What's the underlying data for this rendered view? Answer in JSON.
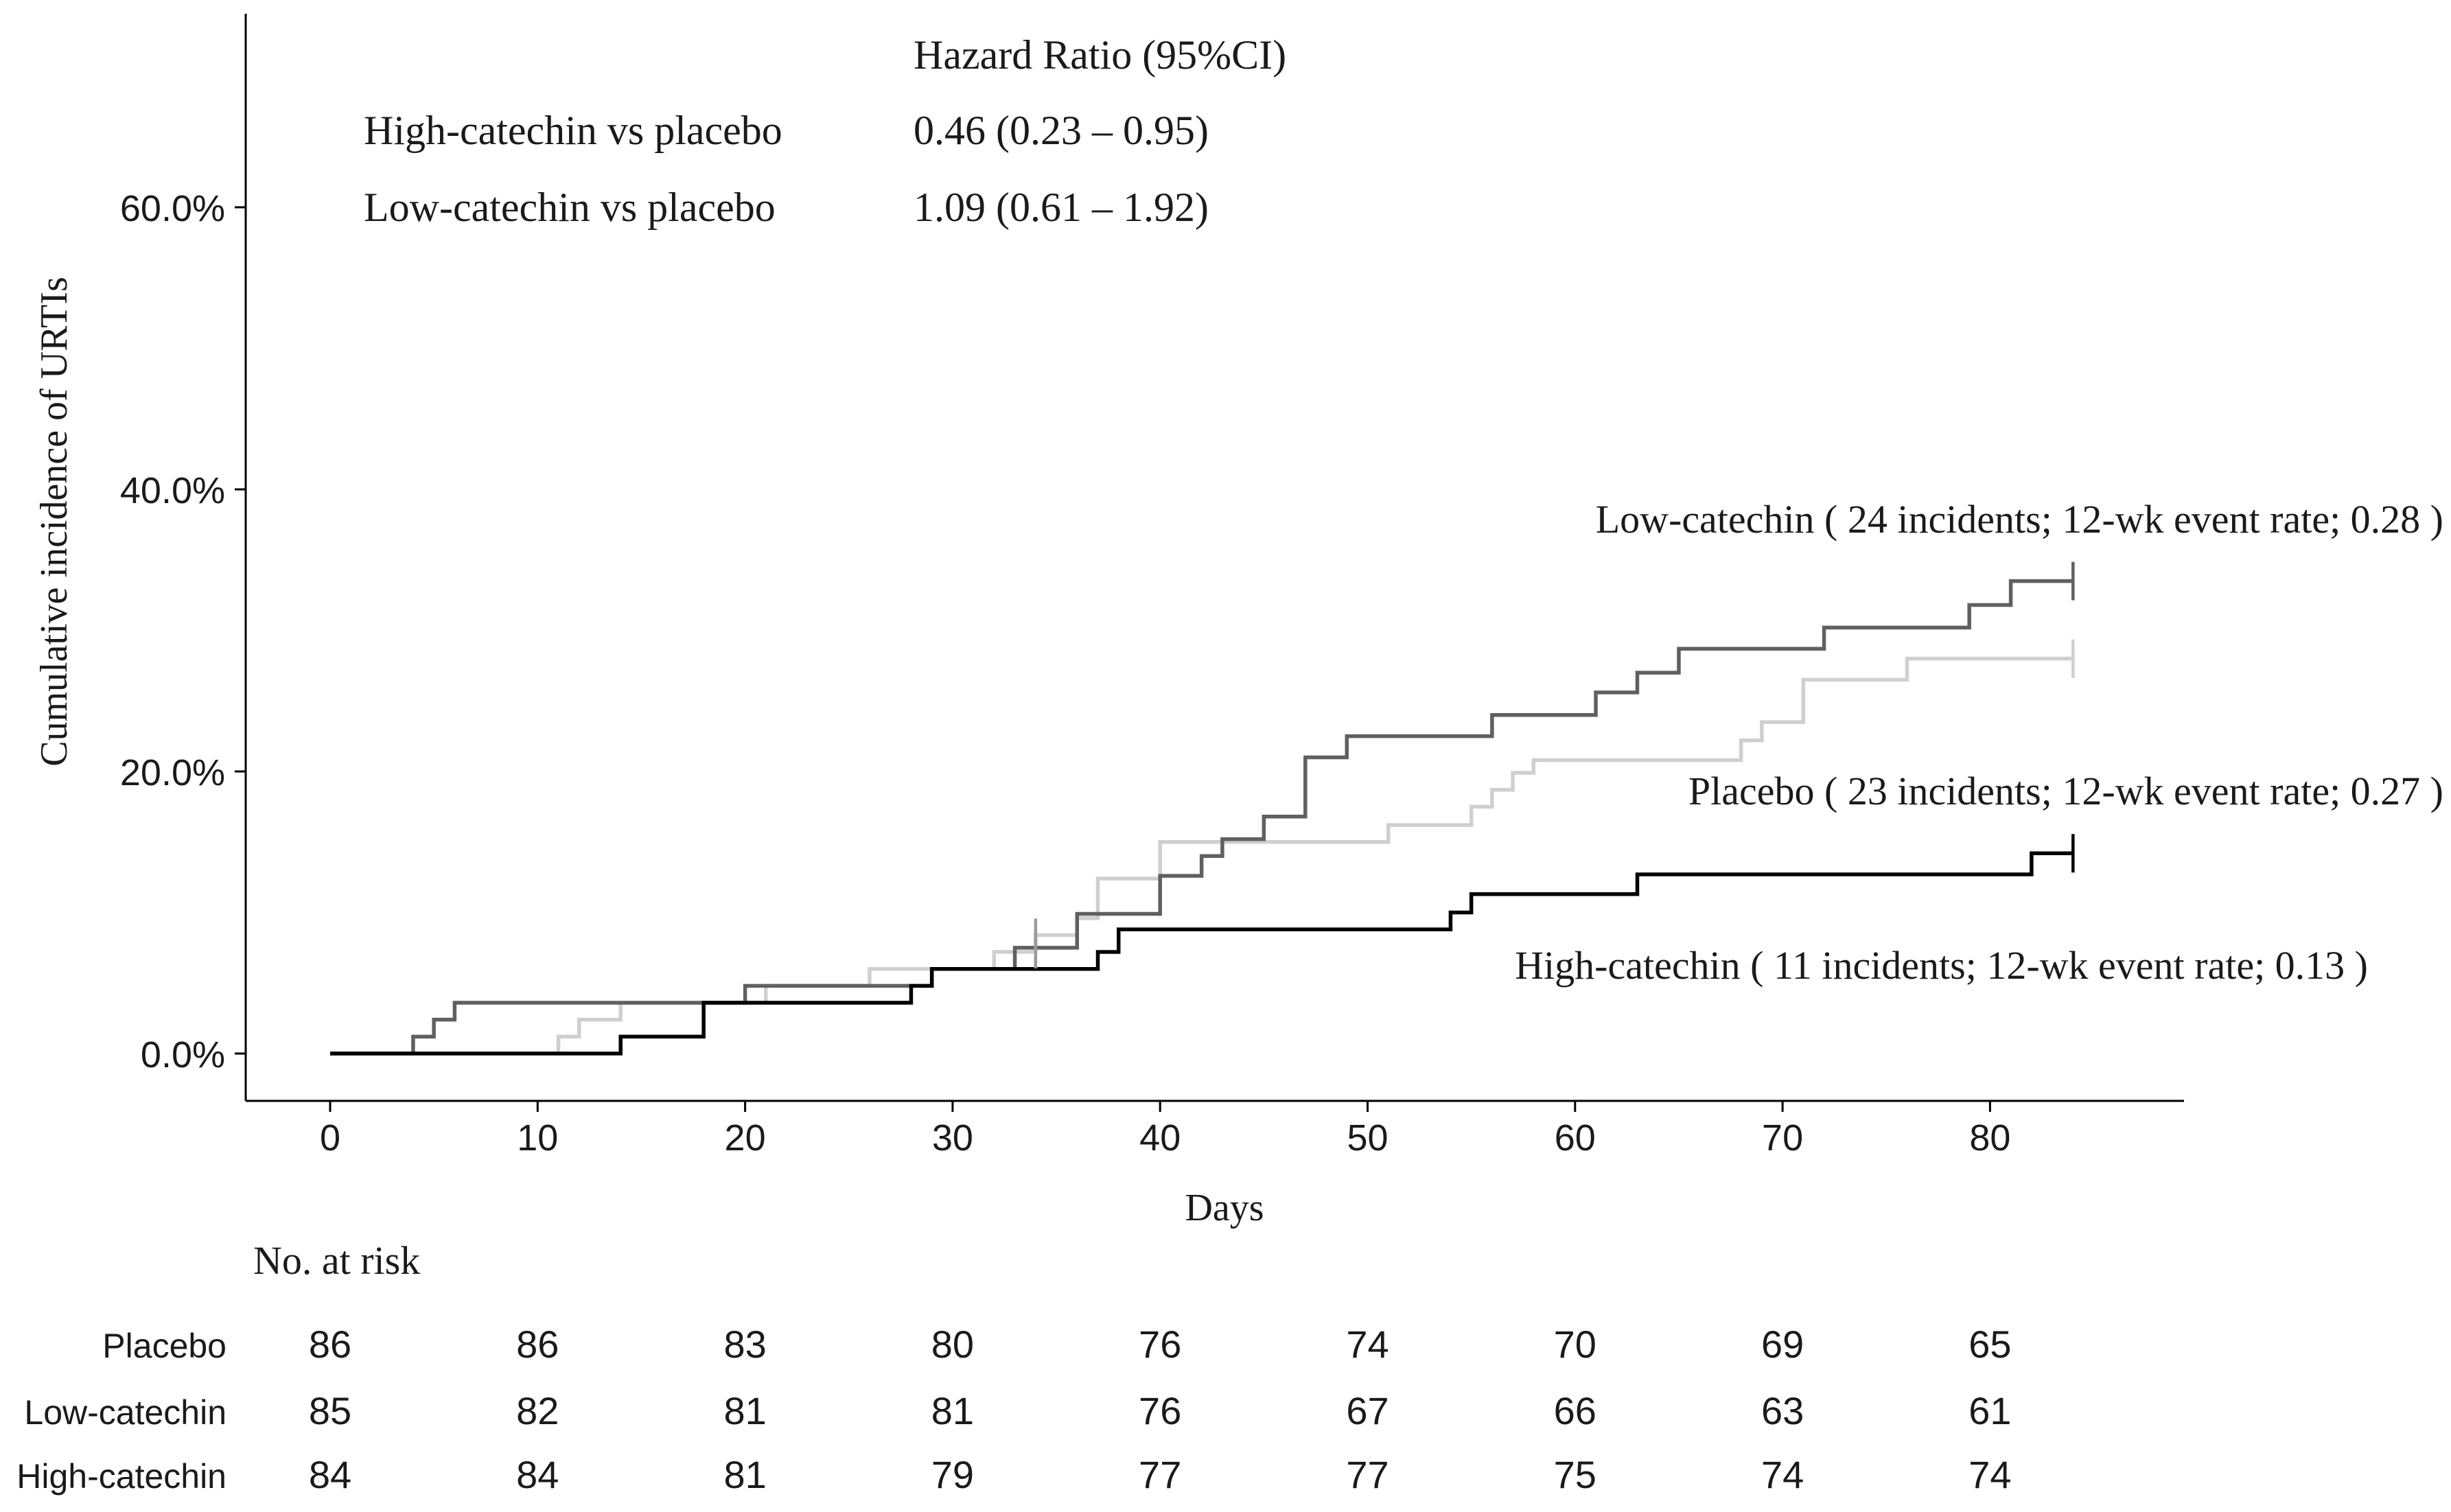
{
  "chart_data": {
    "type": "line",
    "subtype": "kaplan-meier cumulative incidence",
    "xlabel": "Days",
    "ylabel": "Cumulative incidence of URTIs",
    "xlim": [
      -4,
      89
    ],
    "ylim": [
      -3.5,
      73
    ],
    "x_ticks": [
      0,
      10,
      20,
      30,
      40,
      50,
      60,
      70,
      80
    ],
    "x_tick_labels": [
      "0",
      "10",
      "20",
      "30",
      "40",
      "50",
      "60",
      "70",
      "80"
    ],
    "y_ticks": [
      0,
      20,
      40,
      60
    ],
    "y_tick_labels": [
      "0.0%",
      "20.0%",
      "40.0%",
      "60.0%"
    ],
    "hazard_ratio": {
      "header": "Hazard Ratio (95%CI)",
      "rows": [
        {
          "label": "High-catechin vs placebo",
          "value": "0.46 (0.23 – 0.95)"
        },
        {
          "label": "Low-catechin vs placebo",
          "value": "1.09 (0.61 – 1.92)"
        }
      ]
    },
    "series": [
      {
        "name": "Placebo",
        "annotation": "Placebo ( 23 incidents; 12-wk event rate; 0.27 )",
        "color": "#cfcfcf",
        "steps": [
          [
            0,
            0
          ],
          [
            11,
            1.2
          ],
          [
            12,
            2.4
          ],
          [
            14,
            3.6
          ],
          [
            21,
            4.8
          ],
          [
            26,
            6.0
          ],
          [
            32,
            7.2
          ],
          [
            34,
            8.4
          ],
          [
            36,
            9.6
          ],
          [
            37,
            12.4
          ],
          [
            40,
            15.0
          ],
          [
            51,
            16.2
          ],
          [
            55,
            17.5
          ],
          [
            56,
            18.7
          ],
          [
            57,
            19.9
          ],
          [
            58,
            20.8
          ],
          [
            68,
            22.2
          ],
          [
            69,
            23.5
          ],
          [
            71,
            26.5
          ],
          [
            76,
            28.0
          ],
          [
            84,
            28.0
          ]
        ],
        "end_censor": [
          84,
          28.0
        ]
      },
      {
        "name": "Low-catechin",
        "annotation": "Low-catechin ( 24 incidents; 12-wk event rate; 0.28 )",
        "color": "#606060",
        "steps": [
          [
            0,
            0
          ],
          [
            4,
            1.2
          ],
          [
            5,
            2.4
          ],
          [
            6,
            3.6
          ],
          [
            20,
            4.8
          ],
          [
            29,
            6.0
          ],
          [
            33,
            7.5
          ],
          [
            36,
            9.9
          ],
          [
            40,
            12.6
          ],
          [
            42,
            14.0
          ],
          [
            43,
            15.2
          ],
          [
            45,
            16.8
          ],
          [
            47,
            21.0
          ],
          [
            49,
            22.5
          ],
          [
            56,
            24.0
          ],
          [
            61,
            25.6
          ],
          [
            63,
            27.0
          ],
          [
            65,
            28.7
          ],
          [
            72,
            30.2
          ],
          [
            79,
            31.8
          ],
          [
            81,
            33.5
          ],
          [
            84,
            33.5
          ]
        ],
        "end_censor": [
          84,
          33.5
        ]
      },
      {
        "name": "High-catechin",
        "annotation": "High-catechin ( 11 incidents; 12-wk event rate; 0.13 )",
        "color": "#000000",
        "steps": [
          [
            0,
            0
          ],
          [
            14,
            1.2
          ],
          [
            18,
            3.6
          ],
          [
            28,
            4.8
          ],
          [
            29,
            6.0
          ],
          [
            37,
            7.2
          ],
          [
            38,
            8.8
          ],
          [
            54,
            10.0
          ],
          [
            55,
            11.3
          ],
          [
            63,
            12.7
          ],
          [
            82,
            14.2
          ],
          [
            84,
            14.2
          ]
        ],
        "end_censor": [
          84,
          14.2
        ]
      }
    ],
    "censor_marks": [
      [
        34,
        7.2
      ],
      [
        34,
        8.4
      ]
    ],
    "risk_table": {
      "title": "No. at risk",
      "days": [
        0,
        10,
        20,
        30,
        40,
        50,
        60,
        70,
        80
      ],
      "rows": [
        {
          "label": "Placebo",
          "values": [
            "86",
            "86",
            "83",
            "80",
            "76",
            "74",
            "70",
            "69",
            "65"
          ]
        },
        {
          "label": "Low-catechin",
          "values": [
            "85",
            "82",
            "81",
            "81",
            "76",
            "67",
            "66",
            "63",
            "61"
          ]
        },
        {
          "label": "High-catechin",
          "values": [
            "84",
            "84",
            "81",
            "79",
            "77",
            "77",
            "75",
            "74",
            "74"
          ]
        }
      ]
    }
  }
}
